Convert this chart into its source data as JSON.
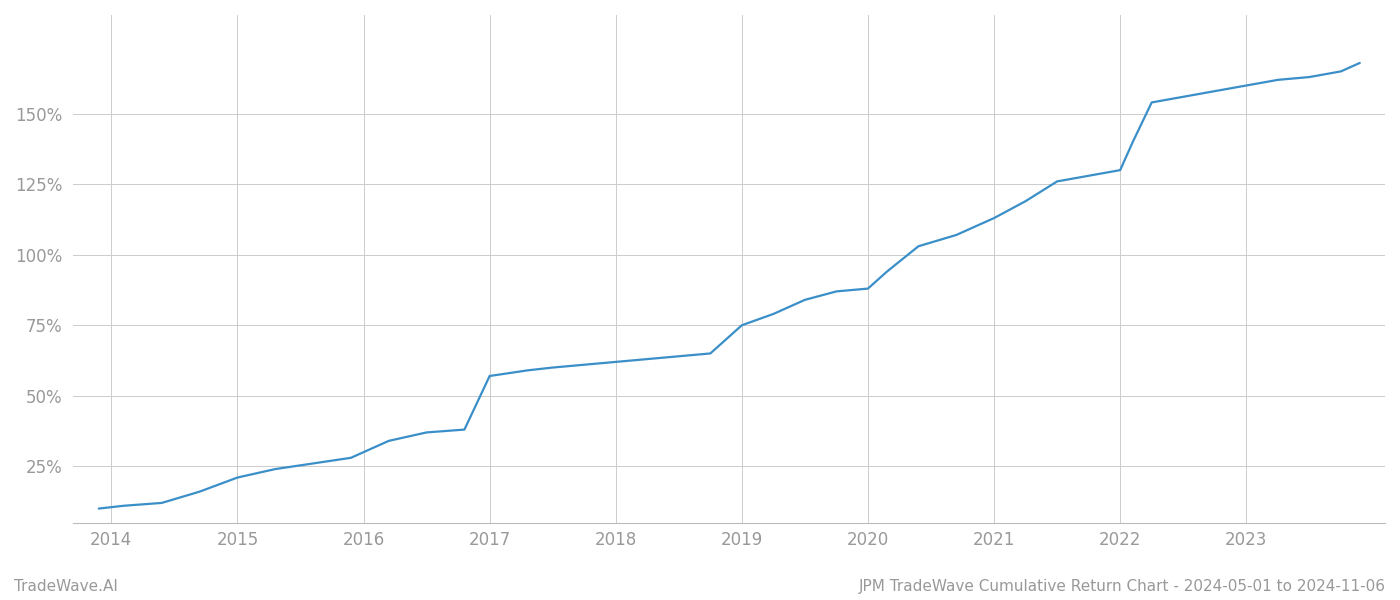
{
  "title": "JPM TradeWave Cumulative Return Chart - 2024-05-01 to 2024-11-06",
  "watermark": "TradeWave.AI",
  "line_color": "#3a8fc8",
  "background_color": "#ffffff",
  "grid_color": "#cccccc",
  "x_years": [
    2014,
    2015,
    2016,
    2017,
    2018,
    2019,
    2020,
    2021,
    2022,
    2023
  ],
  "x_data": [
    2013.9,
    2014.1,
    2014.4,
    2014.7,
    2015.0,
    2015.3,
    2015.6,
    2015.9,
    2016.2,
    2016.5,
    2016.8,
    2017.0,
    2017.15,
    2017.3,
    2017.5,
    2017.75,
    2018.0,
    2018.25,
    2018.5,
    2018.75,
    2019.0,
    2019.25,
    2019.5,
    2019.75,
    2020.0,
    2020.15,
    2020.4,
    2020.7,
    2021.0,
    2021.25,
    2021.5,
    2021.75,
    2022.0,
    2022.1,
    2022.25,
    2022.5,
    2022.75,
    2023.0,
    2023.25,
    2023.5,
    2023.75,
    2023.9
  ],
  "y_data": [
    10,
    11,
    12,
    16,
    21,
    24,
    26,
    28,
    34,
    37,
    38,
    57,
    58,
    59,
    60,
    61,
    62,
    63,
    64,
    65,
    75,
    79,
    84,
    87,
    88,
    94,
    103,
    107,
    113,
    119,
    126,
    128,
    130,
    140,
    154,
    156,
    158,
    160,
    162,
    163,
    165,
    168
  ],
  "yticks": [
    25,
    50,
    75,
    100,
    125,
    150
  ],
  "ylim": [
    5,
    185
  ],
  "xlim": [
    2013.7,
    2024.1
  ],
  "line_width": 1.6,
  "tick_label_color": "#999999",
  "title_fontsize": 11,
  "watermark_fontsize": 11,
  "tick_fontsize": 12
}
